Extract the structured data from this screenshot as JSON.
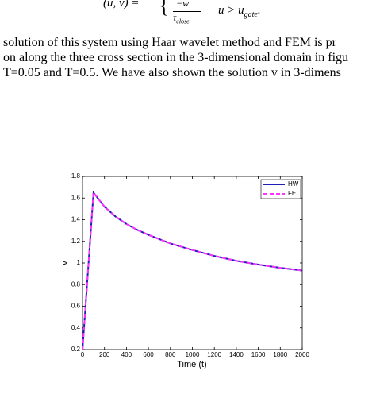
{
  "equation": {
    "lhs": "(u, v) =",
    "numerator": "−w",
    "denominator": "τ",
    "denominator_sub": "close",
    "condition": "u > u",
    "condition_sub": "gate",
    "end": "."
  },
  "text": {
    "lines": [
      "solution of this system using Haar wavelet method and FEM is pr",
      "on along the three cross section in the 3-dimensional domain in figu",
      "T=0.05 and T=0.5. We have also shown the solution v in 3-dimens"
    ]
  },
  "chart_data": {
    "type": "line",
    "xlabel": "Time (t)",
    "ylabel": "v",
    "x": [
      0,
      100,
      200,
      300,
      400,
      500,
      600,
      800,
      1000,
      1200,
      1400,
      1600,
      1800,
      2000
    ],
    "series": [
      {
        "name": "HW",
        "color": "#1f1fb4",
        "dash": false,
        "values": [
          0.2,
          1.65,
          1.52,
          1.43,
          1.36,
          1.305,
          1.26,
          1.18,
          1.12,
          1.065,
          1.02,
          0.985,
          0.955,
          0.93
        ]
      },
      {
        "name": "FE",
        "color": "#ff33ff",
        "dash": true,
        "values": [
          0.2,
          1.65,
          1.52,
          1.43,
          1.36,
          1.305,
          1.26,
          1.18,
          1.12,
          1.065,
          1.02,
          0.985,
          0.955,
          0.93
        ]
      }
    ],
    "xlim": [
      0,
      2000
    ],
    "xticks": [
      0,
      200,
      400,
      600,
      800,
      1000,
      1200,
      1400,
      1600,
      1800,
      2000
    ],
    "ylim": [
      0.2,
      1.8
    ],
    "yticks": [
      0.2,
      0.4,
      0.6,
      0.8,
      1,
      1.2,
      1.4,
      1.6,
      1.8
    ],
    "legend": "top-right"
  }
}
